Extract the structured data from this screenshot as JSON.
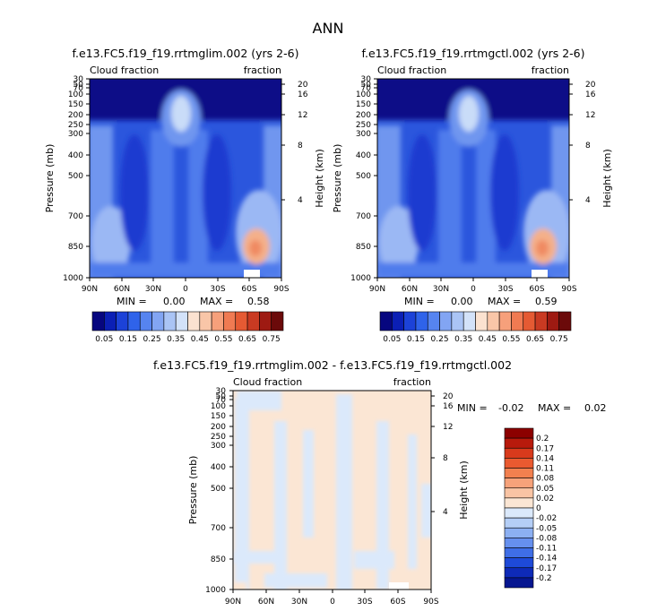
{
  "figure_title": "ANN",
  "chart_data": [
    {
      "type": "heatmap",
      "title": "f.e13.FC5.f19_f19.rrtmglim.002 (yrs 2-6)",
      "left_label": "Cloud fraction",
      "right_label": "fraction",
      "ylabel": "Pressure (mb)",
      "ylabel_right": "Height (km)",
      "x_ticks": [
        "90N",
        "60N",
        "30N",
        "0",
        "30S",
        "60S",
        "90S"
      ],
      "y_ticks": [
        "30",
        "50",
        "70",
        "100",
        "150",
        "200",
        "250",
        "300",
        "400",
        "500",
        "700",
        "850",
        "1000"
      ],
      "y_ticks_right": [
        "20",
        "16",
        "12",
        "8",
        "4"
      ],
      "min_label": "MIN =",
      "min_value": "0.00",
      "max_label": "MAX =",
      "max_value": "0.58",
      "colorbar_labels": [
        "0.05",
        "0.15",
        "0.25",
        "0.35",
        "0.45",
        "0.55",
        "0.65",
        "0.75"
      ],
      "colorbar_colors": [
        "#06067f",
        "#0b1fb5",
        "#1c42d8",
        "#2f63ea",
        "#5684f0",
        "#82a5f3",
        "#aac4f5",
        "#d3e2f9",
        "#fbe2d0",
        "#f9c6a8",
        "#f6a07b",
        "#f07a52",
        "#e55a33",
        "#c93a22",
        "#9e1a12",
        "#6b0a0a"
      ]
    },
    {
      "type": "heatmap",
      "title": "f.e13.FC5.f19_f19.rrtmgctl.002 (yrs 2-6)",
      "left_label": "Cloud fraction",
      "right_label": "fraction",
      "ylabel": "Pressure (mb)",
      "ylabel_right": "Height (km)",
      "x_ticks": [
        "90N",
        "60N",
        "30N",
        "0",
        "30S",
        "60S",
        "90S"
      ],
      "y_ticks": [
        "30",
        "50",
        "70",
        "100",
        "150",
        "200",
        "250",
        "300",
        "400",
        "500",
        "700",
        "850",
        "1000"
      ],
      "y_ticks_right": [
        "20",
        "16",
        "12",
        "8",
        "4"
      ],
      "min_label": "MIN =",
      "min_value": "0.00",
      "max_label": "MAX =",
      "max_value": "0.59",
      "colorbar_labels": [
        "0.05",
        "0.15",
        "0.25",
        "0.35",
        "0.45",
        "0.55",
        "0.65",
        "0.75"
      ],
      "colorbar_colors": [
        "#06067f",
        "#0b1fb5",
        "#1c42d8",
        "#2f63ea",
        "#5684f0",
        "#82a5f3",
        "#aac4f5",
        "#d3e2f9",
        "#fbe2d0",
        "#f9c6a8",
        "#f6a07b",
        "#f07a52",
        "#e55a33",
        "#c93a22",
        "#9e1a12",
        "#6b0a0a"
      ]
    },
    {
      "type": "heatmap",
      "title": "f.e13.FC5.f19_f19.rrtmglim.002 - f.e13.FC5.f19_f19.rrtmgctl.002",
      "left_label": "Cloud fraction",
      "right_label": "fraction",
      "ylabel": "Pressure (mb)",
      "ylabel_right": "Height (km)",
      "x_ticks": [
        "90N",
        "60N",
        "30N",
        "0",
        "30S",
        "60S",
        "90S"
      ],
      "y_ticks": [
        "30",
        "50",
        "70",
        "100",
        "150",
        "200",
        "250",
        "300",
        "400",
        "500",
        "700",
        "850",
        "1000"
      ],
      "y_ticks_right": [
        "20",
        "16",
        "12",
        "8",
        "4"
      ],
      "min_label": "MIN =",
      "min_value": "-0.02",
      "max_label": "MAX =",
      "max_value": "0.02",
      "colorbar_labels": [
        "0.2",
        "0.17",
        "0.14",
        "0.11",
        "0.08",
        "0.05",
        "0.02",
        "0",
        "-0.02",
        "-0.05",
        "-0.08",
        "-0.11",
        "-0.14",
        "-0.17",
        "-0.2"
      ],
      "colorbar_colors": [
        "#8c0000",
        "#b81a0c",
        "#d83a1c",
        "#ea5a30",
        "#f2804f",
        "#f6a27a",
        "#f9c4a4",
        "#fbe6d4",
        "#dbe9fb",
        "#b4cef6",
        "#8cb0f2",
        "#6690ee",
        "#3f6ee6",
        "#1e4ad8",
        "#0e2ab8",
        "#061690"
      ]
    }
  ]
}
